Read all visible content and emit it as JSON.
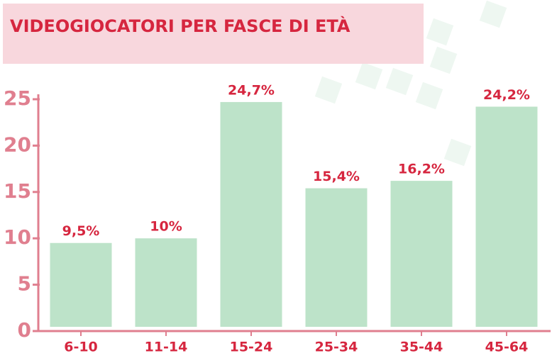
{
  "chart_data": {
    "type": "bar",
    "title": "VIDEOGIOCATORI PER FASCE DI ETÀ",
    "categories": [
      "6-10",
      "11-14",
      "15-24",
      "25-34",
      "35-44",
      "45-64"
    ],
    "values": [
      9.5,
      10,
      24.7,
      15.4,
      16.2,
      24.2
    ],
    "value_labels": [
      "9,5%",
      "10%",
      "24,7%",
      "15,4%",
      "16,2%",
      "24,2%"
    ],
    "color": "#bde3c9",
    "ylim": [
      0,
      25
    ],
    "yticks": [
      0,
      5,
      10,
      15,
      20,
      25
    ],
    "grid": false
  }
}
